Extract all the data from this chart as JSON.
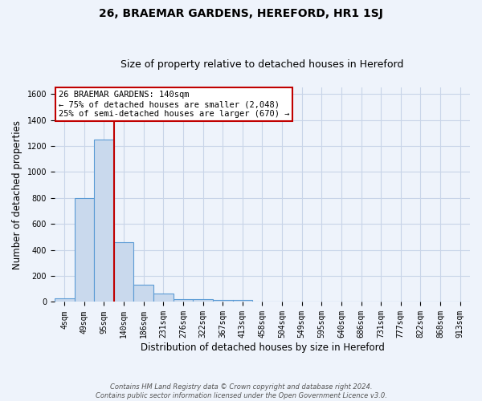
{
  "title": "26, BRAEMAR GARDENS, HEREFORD, HR1 1SJ",
  "subtitle": "Size of property relative to detached houses in Hereford",
  "xlabel": "Distribution of detached houses by size in Hereford",
  "ylabel": "Number of detached properties",
  "footer_line1": "Contains HM Land Registry data © Crown copyright and database right 2024.",
  "footer_line2": "Contains public sector information licensed under the Open Government Licence v3.0.",
  "bar_labels": [
    "4sqm",
    "49sqm",
    "95sqm",
    "140sqm",
    "186sqm",
    "231sqm",
    "276sqm",
    "322sqm",
    "367sqm",
    "413sqm",
    "458sqm",
    "504sqm",
    "549sqm",
    "595sqm",
    "640sqm",
    "686sqm",
    "731sqm",
    "777sqm",
    "822sqm",
    "868sqm",
    "913sqm"
  ],
  "bar_heights": [
    25,
    800,
    1250,
    460,
    130,
    65,
    20,
    20,
    15,
    15,
    0,
    0,
    0,
    0,
    0,
    0,
    0,
    0,
    0,
    0,
    0
  ],
  "bar_color": "#c9d9ed",
  "bar_edge_color": "#5b9bd5",
  "red_line_x": 2.5,
  "red_line_color": "#c00000",
  "ylim": [
    0,
    1650
  ],
  "yticks": [
    0,
    200,
    400,
    600,
    800,
    1000,
    1200,
    1400,
    1600
  ],
  "annotation_line1": "26 BRAEMAR GARDENS: 140sqm",
  "annotation_line2": "← 75% of detached houses are smaller (2,048)",
  "annotation_line3": "25% of semi-detached houses are larger (670) →",
  "annotation_box_edge_color": "#c00000",
  "annotation_box_face_color": "white",
  "bg_color": "#eef3fb",
  "grid_color": "#c8d4e8",
  "title_fontsize": 10,
  "subtitle_fontsize": 9,
  "axis_label_fontsize": 8.5,
  "tick_fontsize": 7,
  "annotation_fontsize": 7.5
}
